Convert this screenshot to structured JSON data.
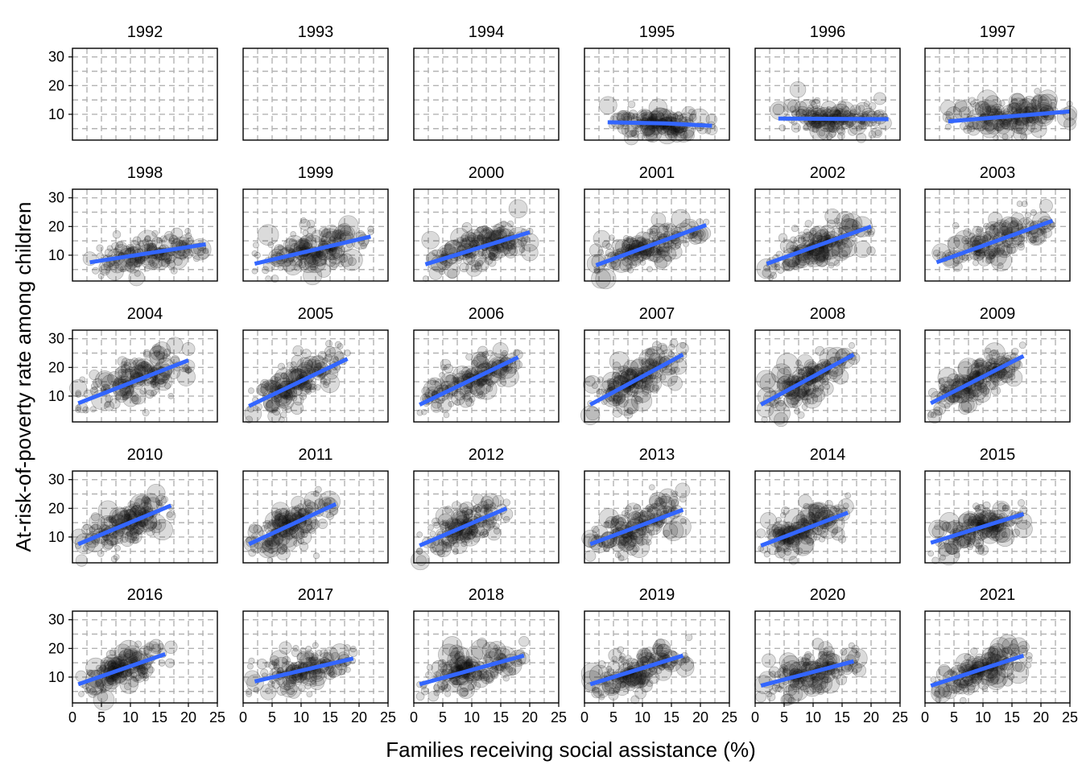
{
  "chart_data": {
    "type": "scatter",
    "facet_by": "year",
    "facet_layout": {
      "rows": 5,
      "cols": 6
    },
    "xlabel": "Families receiving social assistance (%)",
    "ylabel": "At-risk-of-poverty rate among children",
    "xlim": [
      0,
      25
    ],
    "ylim": [
      1,
      33
    ],
    "x_ticks": [
      0,
      5,
      10,
      15,
      20,
      25
    ],
    "y_ticks": [
      10,
      20,
      30
    ],
    "grid": true,
    "grid_style": "dashed",
    "point_color": "#000000",
    "point_opacity": 0.14,
    "fit_line_color": "#3366FF",
    "panels": [
      {
        "year": "1992",
        "has_data": false
      },
      {
        "year": "1993",
        "has_data": false
      },
      {
        "year": "1994",
        "has_data": false
      },
      {
        "year": "1995",
        "has_data": true,
        "x_range": [
          4,
          22
        ],
        "fit": [
          [
            4,
            7.2
          ],
          [
            14,
            6.8
          ],
          [
            22,
            6.0
          ]
        ],
        "spread": 2.2
      },
      {
        "year": "1996",
        "has_data": true,
        "x_range": [
          4,
          23
        ],
        "fit": [
          [
            4,
            8.5
          ],
          [
            23,
            8.3
          ]
        ],
        "spread": 2.6
      },
      {
        "year": "1997",
        "has_data": true,
        "x_range": [
          4,
          25
        ],
        "fit": [
          [
            4,
            7.5
          ],
          [
            25,
            11.0
          ]
        ],
        "spread": 2.8
      },
      {
        "year": "1998",
        "has_data": true,
        "x_range": [
          3,
          23
        ],
        "fit": [
          [
            3,
            7.5
          ],
          [
            23,
            13.8
          ]
        ],
        "spread": 3.2
      },
      {
        "year": "1999",
        "has_data": true,
        "x_range": [
          2,
          22
        ],
        "fit": [
          [
            2,
            7.0
          ],
          [
            22,
            16.5
          ]
        ],
        "spread": 3.5
      },
      {
        "year": "2000",
        "has_data": true,
        "x_range": [
          2,
          20
        ],
        "fit": [
          [
            2,
            6.8
          ],
          [
            20,
            18.0
          ]
        ],
        "spread": 3.5
      },
      {
        "year": "2001",
        "has_data": true,
        "x_range": [
          2,
          21
        ],
        "fit": [
          [
            2,
            6.5
          ],
          [
            21,
            20.5
          ]
        ],
        "spread": 3.5
      },
      {
        "year": "2002",
        "has_data": true,
        "x_range": [
          2,
          20
        ],
        "fit": [
          [
            2,
            7.0
          ],
          [
            20,
            20.0
          ]
        ],
        "spread": 3.6
      },
      {
        "year": "2003",
        "has_data": true,
        "x_range": [
          2,
          22
        ],
        "fit": [
          [
            2,
            7.5
          ],
          [
            22,
            22.0
          ]
        ],
        "spread": 3.6
      },
      {
        "year": "2004",
        "has_data": true,
        "x_range": [
          1,
          20
        ],
        "fit": [
          [
            1,
            7.5
          ],
          [
            20,
            22.5
          ]
        ],
        "spread": 3.8
      },
      {
        "year": "2005",
        "has_data": true,
        "x_range": [
          1,
          18
        ],
        "fit": [
          [
            1,
            6.5
          ],
          [
            18,
            23.0
          ]
        ],
        "spread": 3.8
      },
      {
        "year": "2006",
        "has_data": true,
        "x_range": [
          1,
          18
        ],
        "fit": [
          [
            1,
            7.0
          ],
          [
            18,
            23.5
          ]
        ],
        "spread": 3.8
      },
      {
        "year": "2007",
        "has_data": true,
        "x_range": [
          1,
          17
        ],
        "fit": [
          [
            1,
            7.0
          ],
          [
            17,
            24.5
          ]
        ],
        "spread": 3.8
      },
      {
        "year": "2008",
        "has_data": true,
        "x_range": [
          1,
          17
        ],
        "fit": [
          [
            1,
            7.0
          ],
          [
            17,
            24.5
          ]
        ],
        "spread": 3.8
      },
      {
        "year": "2009",
        "has_data": true,
        "x_range": [
          1,
          17
        ],
        "fit": [
          [
            1,
            7.5
          ],
          [
            17,
            24.0
          ]
        ],
        "spread": 3.8
      },
      {
        "year": "2010",
        "has_data": true,
        "x_range": [
          1,
          17
        ],
        "fit": [
          [
            1,
            7.5
          ],
          [
            17,
            21.0
          ]
        ],
        "spread": 3.6
      },
      {
        "year": "2011",
        "has_data": true,
        "x_range": [
          1,
          16
        ],
        "fit": [
          [
            1,
            7.5
          ],
          [
            16,
            21.5
          ]
        ],
        "spread": 3.6
      },
      {
        "year": "2012",
        "has_data": true,
        "x_range": [
          1,
          16
        ],
        "fit": [
          [
            1,
            7.0
          ],
          [
            16,
            20.0
          ]
        ],
        "spread": 3.6
      },
      {
        "year": "2013",
        "has_data": true,
        "x_range": [
          1,
          17
        ],
        "fit": [
          [
            1,
            7.5
          ],
          [
            17,
            19.5
          ]
        ],
        "spread": 3.6
      },
      {
        "year": "2014",
        "has_data": true,
        "x_range": [
          1,
          16
        ],
        "fit": [
          [
            1,
            7.0
          ],
          [
            16,
            18.5
          ]
        ],
        "spread": 3.5
      },
      {
        "year": "2015",
        "has_data": true,
        "x_range": [
          1,
          17
        ],
        "fit": [
          [
            1,
            8.0
          ],
          [
            17,
            18.0
          ]
        ],
        "spread": 3.4
      },
      {
        "year": "2016",
        "has_data": true,
        "x_range": [
          1,
          17
        ],
        "fit": [
          [
            1,
            7.5
          ],
          [
            16,
            18.0
          ]
        ],
        "spread": 3.4
      },
      {
        "year": "2017",
        "has_data": true,
        "x_range": [
          1,
          19
        ],
        "fit": [
          [
            2,
            8.5
          ],
          [
            19,
            16.5
          ]
        ],
        "spread": 3.3
      },
      {
        "year": "2018",
        "has_data": true,
        "x_range": [
          1,
          19
        ],
        "fit": [
          [
            1,
            7.5
          ],
          [
            19,
            17.5
          ]
        ],
        "spread": 3.3
      },
      {
        "year": "2019",
        "has_data": true,
        "x_range": [
          1,
          18
        ],
        "fit": [
          [
            1,
            7.5
          ],
          [
            17,
            17.5
          ]
        ],
        "spread": 3.3
      },
      {
        "year": "2020",
        "has_data": true,
        "x_range": [
          1,
          18
        ],
        "fit": [
          [
            1,
            7.0
          ],
          [
            17,
            15.5
          ]
        ],
        "spread": 3.2
      },
      {
        "year": "2021",
        "has_data": true,
        "x_range": [
          1,
          18
        ],
        "fit": [
          [
            1,
            7.0
          ],
          [
            17,
            17.5
          ]
        ],
        "spread": 3.2
      }
    ]
  }
}
